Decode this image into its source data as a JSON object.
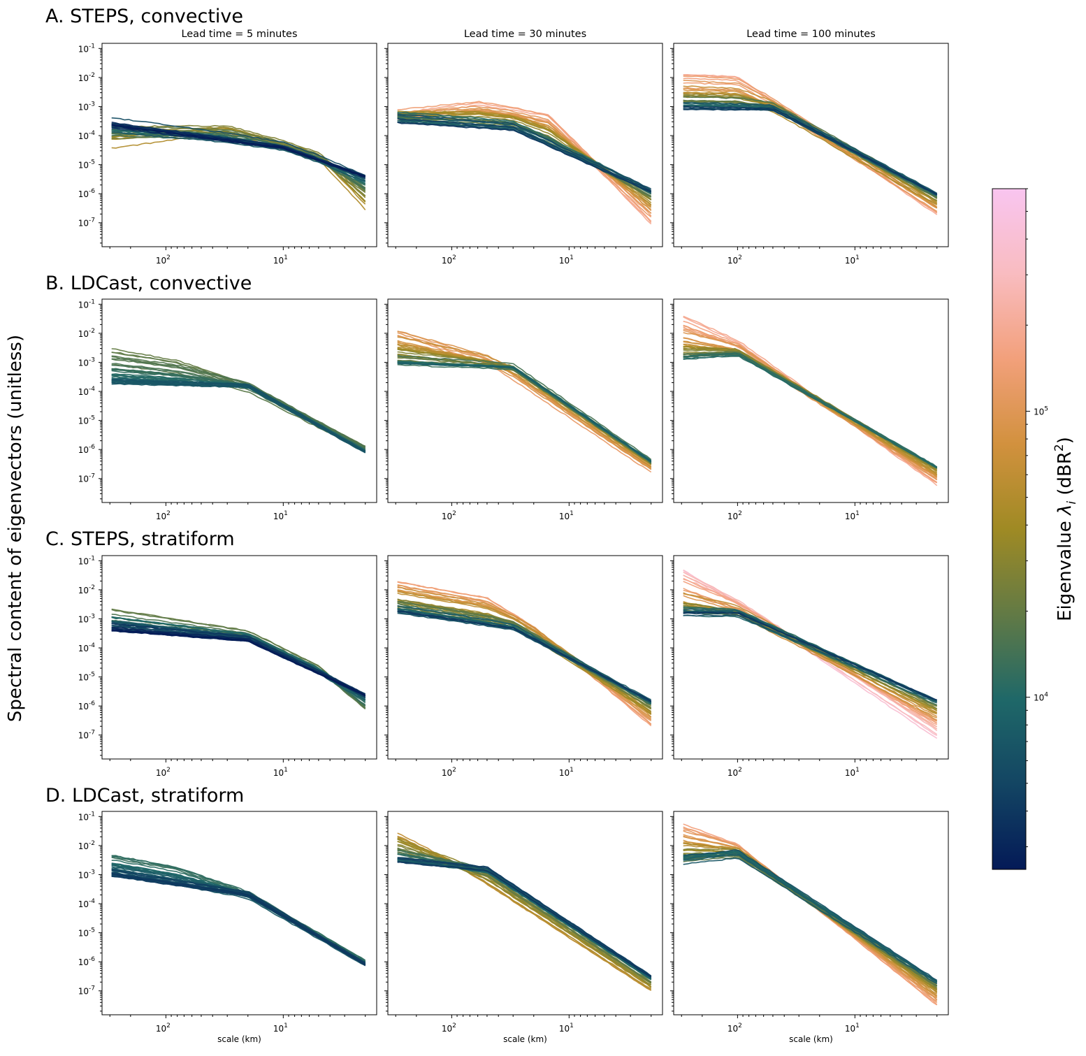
{
  "figure": {
    "ylabel": "Spectral content of eigenvectors (unitless)",
    "xlabel": "scale (km)",
    "colorbar": {
      "label": "Eigenvalue λ_i (dBR²)",
      "scale": "log",
      "range": [
        2500,
        600000
      ],
      "ticks": [
        {
          "label": "10^4",
          "value": 10000
        },
        {
          "label": "10^5",
          "value": 100000
        }
      ],
      "colors": [
        "#041a57",
        "#134563",
        "#1f6868",
        "#627a45",
        "#9f8a24",
        "#d2913e",
        "#f2a07b",
        "#f9bcc0",
        "#f9c5f0"
      ]
    }
  },
  "chart_data": {
    "type": "line",
    "x_scale": "log",
    "y_scale": "log",
    "x_reversed": true,
    "xlim": [
      350,
      1.6
    ],
    "ylim": [
      1.5e-08,
      0.15
    ],
    "xticks": [
      {
        "label": "10^2",
        "value": 100
      },
      {
        "label": "10^1",
        "value": 10
      }
    ],
    "yticks": [
      {
        "label": "10^-1",
        "value": 0.1
      },
      {
        "label": "10^-2",
        "value": 0.01
      },
      {
        "label": "10^-3",
        "value": 0.001
      },
      {
        "label": "10^-4",
        "value": 0.0001
      },
      {
        "label": "10^-5",
        "value": 1e-05
      },
      {
        "label": "10^-6",
        "value": 1e-06
      },
      {
        "label": "10^-7",
        "value": 1e-07
      }
    ],
    "columns": [
      "Lead time = 5 minutes",
      "Lead time = 30 minutes",
      "Lead time = 100 minutes"
    ],
    "rows": [
      {
        "title": "A. STEPS, convective",
        "panels": [
          {
            "lmin": 3.4,
            "lmax": 4.7,
            "nsample": [
              {
                "x": 300,
                "y": 0.00025
              },
              {
                "x": 10,
                "y": 4e-05
              },
              {
                "x": 2,
                "y": 4e-06
              }
            ],
            "nsample_spread": 2.2,
            "psample": [
              {
                "x": 300,
                "y": 6e-05
              },
              {
                "x": 30,
                "y": 0.00018
              },
              {
                "x": 5,
                "y": 2e-05
              },
              {
                "x": 2,
                "y": 3.5e-07
              }
            ],
            "psample_spread": 3.0
          },
          {
            "lmin": 3.6,
            "lmax": 5.3,
            "nsample": [
              {
                "x": 300,
                "y": 0.0004
              },
              {
                "x": 30,
                "y": 0.0002
              },
              {
                "x": 2,
                "y": 1.3e-06
              }
            ],
            "nsample_spread": 2.0,
            "psample": [
              {
                "x": 300,
                "y": 0.0006
              },
              {
                "x": 60,
                "y": 0.0015
              },
              {
                "x": 15,
                "y": 0.0006
              },
              {
                "x": 2,
                "y": 1e-07
              }
            ],
            "psample_spread": 2.5
          },
          {
            "lmin": 3.6,
            "lmax": 5.3,
            "nsample": [
              {
                "x": 300,
                "y": 0.001
              },
              {
                "x": 50,
                "y": 0.0009
              },
              {
                "x": 2,
                "y": 1e-06
              }
            ],
            "nsample_spread": 1.8,
            "psample": [
              {
                "x": 300,
                "y": 0.012
              },
              {
                "x": 100,
                "y": 0.01
              },
              {
                "x": 2,
                "y": 1.8e-07
              }
            ],
            "psample_spread": 2.2
          }
        ]
      },
      {
        "title": "B. LDCast, convective",
        "panels": [
          {
            "lmin": 3.8,
            "lmax": 4.3,
            "nsample": [
              {
                "x": 300,
                "y": 0.0002
              },
              {
                "x": 20,
                "y": 0.00015
              },
              {
                "x": 2,
                "y": 8e-07
              }
            ],
            "nsample_spread": 1.5,
            "psample": [
              {
                "x": 300,
                "y": 0.0025
              },
              {
                "x": 80,
                "y": 0.001
              },
              {
                "x": 20,
                "y": 0.00015
              },
              {
                "x": 2,
                "y": 1.2e-06
              }
            ],
            "psample_spread": 2.5
          },
          {
            "lmin": 3.9,
            "lmax": 5.1,
            "nsample": [
              {
                "x": 300,
                "y": 0.001
              },
              {
                "x": 30,
                "y": 0.0007
              },
              {
                "x": 2,
                "y": 4e-07
              }
            ],
            "nsample_spread": 1.6,
            "psample": [
              {
                "x": 300,
                "y": 0.015
              },
              {
                "x": 50,
                "y": 0.0015
              },
              {
                "x": 2,
                "y": 2e-07
              }
            ],
            "psample_spread": 2.0
          },
          {
            "lmin": 4.0,
            "lmax": 5.3,
            "nsample": [
              {
                "x": 300,
                "y": 0.0015
              },
              {
                "x": 100,
                "y": 0.002
              },
              {
                "x": 2,
                "y": 2.5e-07
              }
            ],
            "nsample_spread": 1.5,
            "psample": [
              {
                "x": 300,
                "y": 0.04
              },
              {
                "x": 100,
                "y": 0.005
              },
              {
                "x": 2,
                "y": 6e-08
              }
            ],
            "psample_spread": 2.0
          }
        ]
      },
      {
        "title": "C. STEPS, stratiform",
        "panels": [
          {
            "lmin": 3.4,
            "lmax": 4.3,
            "nsample": [
              {
                "x": 300,
                "y": 0.0005
              },
              {
                "x": 20,
                "y": 0.0002
              },
              {
                "x": 2,
                "y": 2.5e-06
              }
            ],
            "nsample_spread": 1.8,
            "psample": [
              {
                "x": 300,
                "y": 0.0015
              },
              {
                "x": 20,
                "y": 0.0003
              },
              {
                "x": 5,
                "y": 2e-05
              },
              {
                "x": 2,
                "y": 7e-07
              }
            ],
            "psample_spread": 2.2
          },
          {
            "lmin": 3.6,
            "lmax": 5.2,
            "nsample": [
              {
                "x": 300,
                "y": 0.002
              },
              {
                "x": 30,
                "y": 0.0005
              },
              {
                "x": 2,
                "y": 1.5e-06
              }
            ],
            "nsample_spread": 1.8,
            "psample": [
              {
                "x": 300,
                "y": 0.018
              },
              {
                "x": 50,
                "y": 0.005
              },
              {
                "x": 20,
                "y": 0.0005
              },
              {
                "x": 2,
                "y": 2e-07
              }
            ],
            "psample_spread": 2.2
          },
          {
            "lmin": 3.6,
            "lmax": 5.6,
            "nsample": [
              {
                "x": 300,
                "y": 0.0015
              },
              {
                "x": 100,
                "y": 0.0015
              },
              {
                "x": 2,
                "y": 1.5e-06
              }
            ],
            "nsample_spread": 1.8,
            "psample": [
              {
                "x": 300,
                "y": 0.06
              },
              {
                "x": 100,
                "y": 0.004
              },
              {
                "x": 2,
                "y": 8e-08
              }
            ],
            "psample_spread": 2.0
          }
        ]
      },
      {
        "title": "D. LDCast, stratiform",
        "panels": [
          {
            "lmin": 3.6,
            "lmax": 4.1,
            "nsample": [
              {
                "x": 300,
                "y": 0.001
              },
              {
                "x": 20,
                "y": 0.0002
              },
              {
                "x": 2,
                "y": 8e-07
              }
            ],
            "nsample_spread": 1.6,
            "psample": [
              {
                "x": 300,
                "y": 0.004
              },
              {
                "x": 80,
                "y": 0.0015
              },
              {
                "x": 20,
                "y": 0.0002
              },
              {
                "x": 2,
                "y": 1e-06
              }
            ],
            "psample_spread": 2.2
          },
          {
            "lmin": 3.6,
            "lmax": 4.8,
            "nsample": [
              {
                "x": 300,
                "y": 0.003
              },
              {
                "x": 50,
                "y": 0.0015
              },
              {
                "x": 2,
                "y": 3e-07
              }
            ],
            "nsample_spread": 1.6,
            "psample": [
              {
                "x": 300,
                "y": 0.03
              },
              {
                "x": 100,
                "y": 0.003
              },
              {
                "x": 2,
                "y": 1e-07
              }
            ],
            "psample_spread": 2.0
          },
          {
            "lmin": 3.8,
            "lmax": 5.2,
            "nsample": [
              {
                "x": 300,
                "y": 0.003
              },
              {
                "x": 100,
                "y": 0.005
              },
              {
                "x": 2,
                "y": 2e-07
              }
            ],
            "nsample_spread": 1.6,
            "psample": [
              {
                "x": 300,
                "y": 0.05
              },
              {
                "x": 100,
                "y": 0.01
              },
              {
                "x": 2,
                "y": 3e-08
              }
            ],
            "psample_spread": 2.0
          }
        ]
      }
    ]
  }
}
